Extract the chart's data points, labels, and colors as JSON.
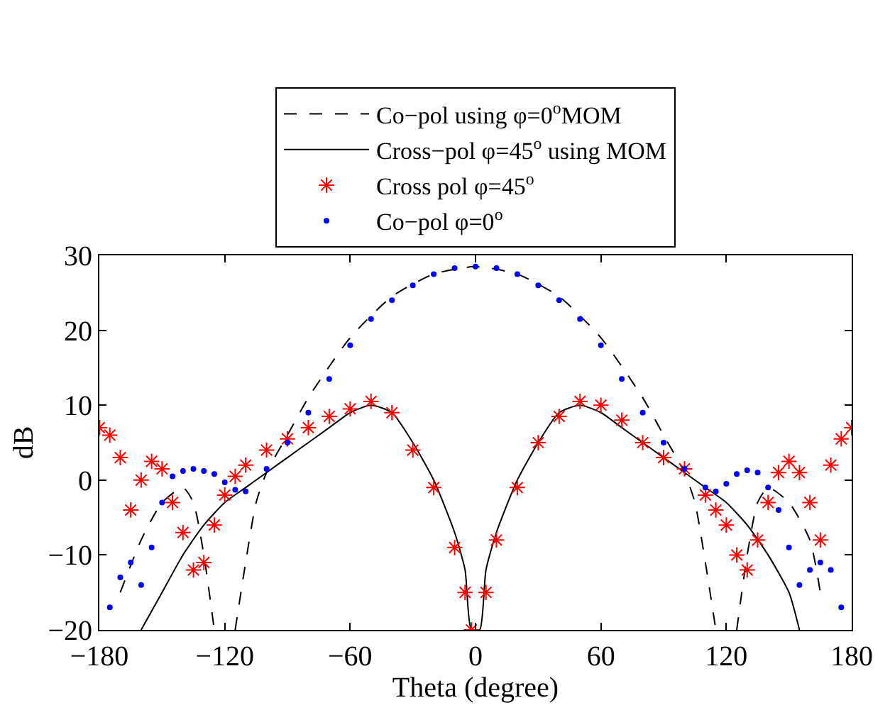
{
  "chart_data": {
    "type": "line",
    "xlabel": "Theta (degree)",
    "ylabel": "dB",
    "xlim": [
      -180,
      180
    ],
    "xticks": [
      -180,
      -120,
      -60,
      0,
      60,
      120,
      180
    ],
    "ylim": [
      -20,
      30
    ],
    "yticks": [
      -20,
      -10,
      0,
      10,
      20,
      30
    ],
    "legend": "top",
    "series": [
      {
        "name": "Co−pol using φ=0$^{o}$MOM",
        "line_style": "dashed",
        "marker": "none",
        "color": "#000000",
        "x": [
          -170,
          -160,
          -150,
          -140,
          -135,
          -130,
          -125,
          null,
          -115,
          -110,
          -105,
          -100,
          -90,
          -80,
          -60,
          -40,
          -20,
          0,
          20,
          40,
          60,
          80,
          90,
          100,
          105,
          110,
          115,
          null,
          125,
          130,
          135,
          140,
          150,
          160,
          165
        ],
        "values": [
          -15,
          -8,
          -3,
          -1,
          -3,
          -10,
          -20,
          null,
          -20,
          -11,
          -3,
          1,
          6,
          11,
          19,
          24.5,
          27.5,
          28.5,
          27.5,
          24.5,
          19,
          11,
          6,
          1,
          -3,
          -11,
          -20,
          null,
          -20,
          -10,
          -3,
          -1,
          -3,
          -8,
          -15
        ]
      },
      {
        "name": "Cross−pol φ=45$^{o}$ using MOM",
        "line_style": "solid",
        "marker": "none",
        "color": "#000000",
        "x": [
          -160,
          -150,
          -140,
          -130,
          -120,
          -110,
          -100,
          -90,
          -80,
          -70,
          -60,
          -50,
          -40,
          -30,
          -20,
          -10,
          -5,
          -2,
          2,
          5,
          10,
          20,
          30,
          40,
          50,
          60,
          70,
          80,
          90,
          100,
          110,
          120,
          130,
          140,
          150,
          155
        ],
        "values": [
          -20,
          -15,
          -10,
          -6,
          -3,
          -1,
          1,
          3,
          5,
          7,
          9,
          10,
          9,
          5,
          0,
          -7,
          -12,
          -20,
          -20,
          -12,
          -7,
          0,
          5,
          9,
          10,
          9,
          7,
          5,
          3,
          1,
          -1,
          -3,
          -6,
          -10,
          -15,
          -20
        ]
      },
      {
        "name": "Cross pol φ=45$^{o}$",
        "type": "scatter",
        "marker": "cross",
        "color": "#ff0000",
        "x": [
          -180,
          -175,
          -170,
          -165,
          -160,
          -155,
          -150,
          -145,
          -140,
          -135,
          -130,
          -125,
          -120,
          -115,
          -110,
          -100,
          -90,
          -80,
          -70,
          -60,
          -50,
          -40,
          -30,
          -20,
          -10,
          -5,
          -2,
          5,
          10,
          20,
          30,
          40,
          50,
          60,
          70,
          80,
          90,
          100,
          110,
          115,
          120,
          125,
          130,
          135,
          140,
          145,
          150,
          155,
          160,
          165,
          170,
          175,
          180
        ],
        "values": [
          7,
          6,
          3,
          -4,
          0,
          2.5,
          1.5,
          -3,
          -7,
          -12,
          -11,
          -6,
          -2,
          0.5,
          2,
          4,
          5.5,
          7,
          8.5,
          9.5,
          10.5,
          9,
          4,
          -1,
          -9,
          -15,
          -20,
          -15,
          -8,
          -1,
          5,
          8.5,
          10.5,
          10,
          8,
          5,
          3,
          1.5,
          -2,
          -4,
          -6,
          -10,
          -12,
          -8,
          -3,
          1,
          2.5,
          1,
          -3,
          -8,
          2,
          5.5,
          7
        ]
      },
      {
        "name": "Co−pol φ=0$^{o}$",
        "type": "scatter",
        "marker": "circle",
        "color": "#0000ff",
        "x": [
          -175,
          -170,
          -165,
          -160,
          -155,
          -150,
          -145,
          -140,
          -135,
          -130,
          -125,
          -120,
          -115,
          -110,
          -100,
          -90,
          -80,
          -70,
          -60,
          -50,
          -40,
          -30,
          -20,
          -10,
          0,
          10,
          20,
          30,
          40,
          50,
          60,
          70,
          80,
          90,
          100,
          110,
          115,
          120,
          125,
          130,
          135,
          140,
          145,
          150,
          155,
          160,
          165,
          170,
          175
        ],
        "values": [
          -17,
          -13,
          -11,
          -14,
          -9,
          -3,
          0.5,
          1.2,
          1.5,
          1.2,
          0.8,
          -0.3,
          -1.3,
          -1.5,
          1.5,
          5,
          9,
          13.5,
          18,
          21.5,
          24,
          26,
          27.5,
          28.3,
          28.5,
          28.3,
          27.5,
          26,
          24,
          21.5,
          18,
          13.5,
          9,
          5,
          1.5,
          -1,
          -1.5,
          -0.5,
          0.8,
          1.3,
          1,
          -1,
          -4,
          -9,
          -14,
          -12,
          -11,
          -12,
          -17
        ]
      }
    ]
  }
}
